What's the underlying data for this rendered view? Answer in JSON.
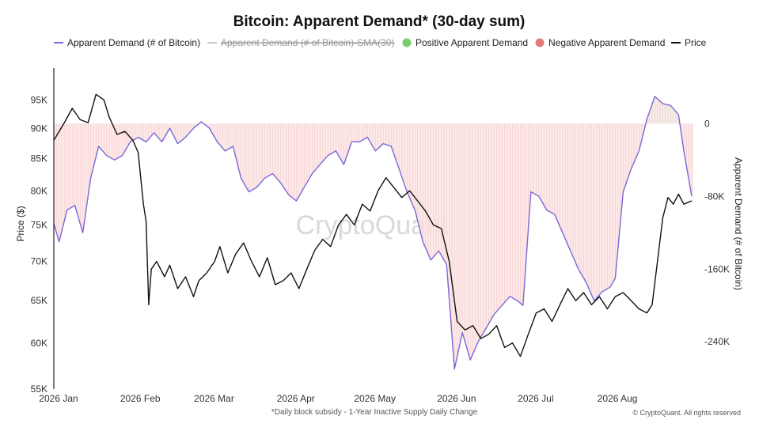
{
  "chart_data": {
    "type": "line",
    "title": "Bitcoin: Apparent Demand* (30-day sum)",
    "ylabel_left": "Price ($)",
    "ylabel_right": "Apparent Demand (# of Bitcoin)",
    "xlabel": "",
    "footnote": "*Daily block subsidy - 1-Year Inactive Supply Daily Change",
    "watermark": "CryptoQuant",
    "copyright": "© CryptoQuant. All rights reserved",
    "x_axis": {
      "start": "2026-01-01",
      "end": "2026-08-31",
      "tick_labels": [
        "2026 Jan",
        "2026 Feb",
        "2026 Mar",
        "2026 Apr",
        "2026 May",
        "2026 Jun",
        "2026 Jul",
        "2026 Aug"
      ],
      "tick_dates": [
        "2026-01-01",
        "2026-02-01",
        "2026-03-01",
        "2026-04-01",
        "2026-05-01",
        "2026-06-01",
        "2026-07-01",
        "2026-08-01"
      ]
    },
    "y_left": {
      "scale": "log",
      "ylim": [
        55000,
        100000
      ],
      "ticks": [
        55000,
        60000,
        65000,
        70000,
        75000,
        80000,
        85000,
        90000,
        95000
      ],
      "tick_labels": [
        "55K",
        "60K",
        "65K",
        "70K",
        "75K",
        "80K",
        "85K",
        "90K",
        "95K"
      ]
    },
    "y_right": {
      "scale": "linear",
      "ylim": [
        -292000,
        56000
      ],
      "ticks": [
        0,
        -80000,
        -160000,
        -240000
      ],
      "tick_labels": [
        "0",
        "-80K",
        "-160K",
        "-240K"
      ]
    },
    "legend": {
      "placement": "top",
      "entries": [
        {
          "label": "Apparent Demand (# of Bitcoin)",
          "marker": "line",
          "color": "#7b68d9",
          "struck": false
        },
        {
          "label": "Apparent Demand (# of Bitcoin)-SMA(30)",
          "marker": "line",
          "color": "#c8c8c8",
          "struck": true
        },
        {
          "label": "Positive Apparent Demand",
          "marker": "dot",
          "color": "#7ccc6a",
          "struck": false
        },
        {
          "label": "Negative Apparent Demand",
          "marker": "dot",
          "color": "#e57b7b",
          "struck": false
        },
        {
          "label": "Price",
          "marker": "line",
          "color": "#111111",
          "struck": false
        }
      ]
    },
    "colors": {
      "demand_line": "#7b68d9",
      "negative_bar": "#e57b7b",
      "negative_fill": "#fbe3e3",
      "positive_bar": "#5cbf4c",
      "positive_fill": "#dff2da",
      "price_line": "#111111"
    },
    "series": [
      {
        "name": "Price",
        "axis": "left",
        "points": [
          [
            "2026-01-01",
            88000
          ],
          [
            "2026-01-05",
            91000
          ],
          [
            "2026-01-08",
            93500
          ],
          [
            "2026-01-11",
            91500
          ],
          [
            "2026-01-14",
            91000
          ],
          [
            "2026-01-17",
            96000
          ],
          [
            "2026-01-20",
            95000
          ],
          [
            "2026-01-22",
            92000
          ],
          [
            "2026-01-25",
            89000
          ],
          [
            "2026-01-28",
            89500
          ],
          [
            "2026-01-31",
            88000
          ],
          [
            "2026-02-02",
            86000
          ],
          [
            "2026-02-04",
            78000
          ],
          [
            "2026-02-05",
            75500
          ],
          [
            "2026-02-06",
            64500
          ],
          [
            "2026-02-07",
            69000
          ],
          [
            "2026-02-09",
            70000
          ],
          [
            "2026-02-12",
            68000
          ],
          [
            "2026-02-14",
            69500
          ],
          [
            "2026-02-17",
            66500
          ],
          [
            "2026-02-20",
            68000
          ],
          [
            "2026-02-23",
            65500
          ],
          [
            "2026-02-25",
            67500
          ],
          [
            "2026-02-28",
            68500
          ],
          [
            "2026-03-03",
            70000
          ],
          [
            "2026-03-05",
            72000
          ],
          [
            "2026-03-08",
            68500
          ],
          [
            "2026-03-11",
            71000
          ],
          [
            "2026-03-14",
            72500
          ],
          [
            "2026-03-17",
            70000
          ],
          [
            "2026-03-20",
            68000
          ],
          [
            "2026-03-23",
            70500
          ],
          [
            "2026-03-26",
            67000
          ],
          [
            "2026-03-29",
            67500
          ],
          [
            "2026-04-01",
            68500
          ],
          [
            "2026-04-04",
            66500
          ],
          [
            "2026-04-07",
            69000
          ],
          [
            "2026-04-10",
            71500
          ],
          [
            "2026-04-13",
            73000
          ],
          [
            "2026-04-16",
            72000
          ],
          [
            "2026-04-19",
            75000
          ],
          [
            "2026-04-22",
            76500
          ],
          [
            "2026-04-25",
            75000
          ],
          [
            "2026-04-28",
            78000
          ],
          [
            "2026-05-01",
            77000
          ],
          [
            "2026-05-04",
            80000
          ],
          [
            "2026-05-07",
            82000
          ],
          [
            "2026-05-10",
            80500
          ],
          [
            "2026-05-13",
            79000
          ],
          [
            "2026-05-16",
            80000
          ],
          [
            "2026-05-19",
            78500
          ],
          [
            "2026-05-22",
            77000
          ],
          [
            "2026-05-25",
            75000
          ],
          [
            "2026-05-28",
            74500
          ],
          [
            "2026-05-31",
            70000
          ],
          [
            "2026-06-03",
            62500
          ],
          [
            "2026-06-06",
            61500
          ],
          [
            "2026-06-09",
            62000
          ],
          [
            "2026-06-12",
            60500
          ],
          [
            "2026-06-15",
            61000
          ],
          [
            "2026-06-18",
            62000
          ],
          [
            "2026-06-21",
            59500
          ],
          [
            "2026-06-24",
            60000
          ],
          [
            "2026-06-27",
            58500
          ],
          [
            "2026-06-30",
            61000
          ],
          [
            "2026-07-03",
            63500
          ],
          [
            "2026-07-06",
            64000
          ],
          [
            "2026-07-09",
            62500
          ],
          [
            "2026-07-12",
            64500
          ],
          [
            "2026-07-15",
            66500
          ],
          [
            "2026-07-18",
            65000
          ],
          [
            "2026-07-21",
            66000
          ],
          [
            "2026-07-24",
            64500
          ],
          [
            "2026-07-27",
            65500
          ],
          [
            "2026-07-30",
            64000
          ],
          [
            "2026-08-02",
            65500
          ],
          [
            "2026-08-05",
            66000
          ],
          [
            "2026-08-08",
            65000
          ],
          [
            "2026-08-11",
            64000
          ],
          [
            "2026-08-14",
            63500
          ],
          [
            "2026-08-16",
            64500
          ],
          [
            "2026-08-18",
            70000
          ],
          [
            "2026-08-20",
            76000
          ],
          [
            "2026-08-22",
            79000
          ],
          [
            "2026-08-24",
            78000
          ],
          [
            "2026-08-26",
            79500
          ],
          [
            "2026-08-28",
            78000
          ],
          [
            "2026-08-31",
            78500
          ]
        ]
      },
      {
        "name": "Apparent Demand (# of Bitcoin)",
        "axis": "right",
        "points": [
          [
            "2026-01-01",
            -110000
          ],
          [
            "2026-01-03",
            -130000
          ],
          [
            "2026-01-06",
            -95000
          ],
          [
            "2026-01-09",
            -90000
          ],
          [
            "2026-01-12",
            -120000
          ],
          [
            "2026-01-15",
            -60000
          ],
          [
            "2026-01-18",
            -25000
          ],
          [
            "2026-01-21",
            -35000
          ],
          [
            "2026-01-24",
            -40000
          ],
          [
            "2026-01-27",
            -35000
          ],
          [
            "2026-01-30",
            -20000
          ],
          [
            "2026-02-02",
            -15000
          ],
          [
            "2026-02-05",
            -20000
          ],
          [
            "2026-02-08",
            -10000
          ],
          [
            "2026-02-11",
            -20000
          ],
          [
            "2026-02-14",
            -5000
          ],
          [
            "2026-02-17",
            -22000
          ],
          [
            "2026-02-20",
            -15000
          ],
          [
            "2026-02-23",
            -5000
          ],
          [
            "2026-02-26",
            2000
          ],
          [
            "2026-03-01",
            -5000
          ],
          [
            "2026-03-04",
            -20000
          ],
          [
            "2026-03-07",
            -30000
          ],
          [
            "2026-03-10",
            -25000
          ],
          [
            "2026-03-13",
            -60000
          ],
          [
            "2026-03-16",
            -75000
          ],
          [
            "2026-03-19",
            -70000
          ],
          [
            "2026-03-22",
            -60000
          ],
          [
            "2026-03-25",
            -55000
          ],
          [
            "2026-03-28",
            -65000
          ],
          [
            "2026-03-31",
            -78000
          ],
          [
            "2026-04-03",
            -85000
          ],
          [
            "2026-04-06",
            -70000
          ],
          [
            "2026-04-09",
            -55000
          ],
          [
            "2026-04-12",
            -45000
          ],
          [
            "2026-04-15",
            -35000
          ],
          [
            "2026-04-18",
            -30000
          ],
          [
            "2026-04-21",
            -45000
          ],
          [
            "2026-04-24",
            -20000
          ],
          [
            "2026-04-27",
            -20000
          ],
          [
            "2026-04-30",
            -15000
          ],
          [
            "2026-05-03",
            -30000
          ],
          [
            "2026-05-06",
            -22000
          ],
          [
            "2026-05-09",
            -25000
          ],
          [
            "2026-05-12",
            -50000
          ],
          [
            "2026-05-15",
            -75000
          ],
          [
            "2026-05-18",
            -95000
          ],
          [
            "2026-05-21",
            -130000
          ],
          [
            "2026-05-24",
            -150000
          ],
          [
            "2026-05-27",
            -140000
          ],
          [
            "2026-05-30",
            -155000
          ],
          [
            "2026-06-02",
            -270000
          ],
          [
            "2026-06-05",
            -230000
          ],
          [
            "2026-06-08",
            -260000
          ],
          [
            "2026-06-11",
            -240000
          ],
          [
            "2026-06-14",
            -225000
          ],
          [
            "2026-06-17",
            -210000
          ],
          [
            "2026-06-20",
            -200000
          ],
          [
            "2026-06-23",
            -190000
          ],
          [
            "2026-06-26",
            -195000
          ],
          [
            "2026-06-28",
            -200000
          ],
          [
            "2026-07-01",
            -75000
          ],
          [
            "2026-07-04",
            -80000
          ],
          [
            "2026-07-07",
            -95000
          ],
          [
            "2026-07-10",
            -100000
          ],
          [
            "2026-07-13",
            -120000
          ],
          [
            "2026-07-16",
            -140000
          ],
          [
            "2026-07-19",
            -160000
          ],
          [
            "2026-07-22",
            -175000
          ],
          [
            "2026-07-25",
            -195000
          ],
          [
            "2026-07-28",
            -185000
          ],
          [
            "2026-07-31",
            -180000
          ],
          [
            "2026-08-02",
            -170000
          ],
          [
            "2026-08-05",
            -75000
          ],
          [
            "2026-08-08",
            -50000
          ],
          [
            "2026-08-11",
            -30000
          ],
          [
            "2026-08-14",
            5000
          ],
          [
            "2026-08-17",
            30000
          ],
          [
            "2026-08-20",
            22000
          ],
          [
            "2026-08-23",
            20000
          ],
          [
            "2026-08-26",
            10000
          ],
          [
            "2026-08-28",
            -30000
          ],
          [
            "2026-08-31",
            -80000
          ]
        ]
      }
    ]
  }
}
